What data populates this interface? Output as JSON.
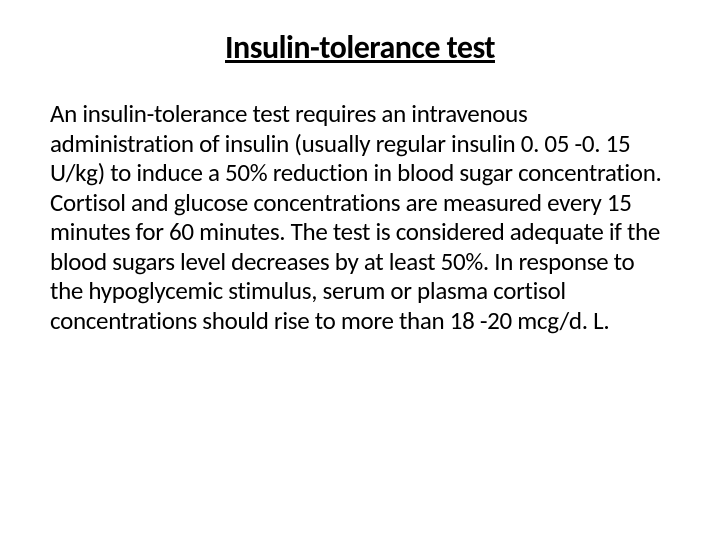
{
  "slide": {
    "title": "Insulin-tolerance test",
    "body": "An insulin-tolerance test requires an intravenous administration of insulin (usually regular insulin 0. 05 -0. 15 U/kg) to induce a 50% reduction in blood sugar concentration. Cortisol and glucose concentrations are measured every 15 minutes for 60 minutes. The test is considered adequate if the blood sugars level decreases by at least 50%. In response to the hypoglycemic stimulus, serum or plasma cortisol concentrations should rise to more than 18 -20 mcg/d. L."
  }
}
